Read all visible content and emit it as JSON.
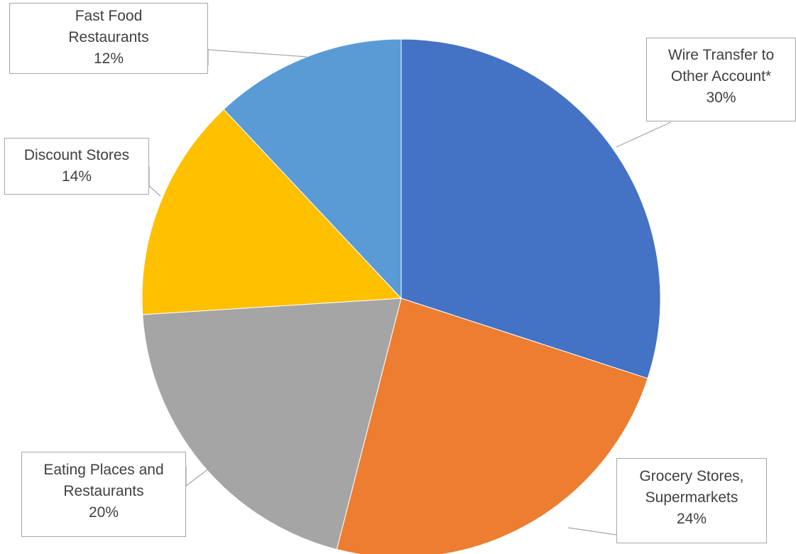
{
  "chart_data": {
    "type": "pie",
    "title": "",
    "start_angle_deg": 0,
    "direction": "clockwise",
    "legend": "none",
    "slices": [
      {
        "label_lines": [
          "Wire Transfer to",
          "Other Account*"
        ],
        "percent_label": "30%",
        "value": 30,
        "color": "#4472C4"
      },
      {
        "label_lines": [
          "Grocery Stores,",
          "Supermarkets"
        ],
        "percent_label": "24%",
        "value": 24,
        "color": "#ED7D31"
      },
      {
        "label_lines": [
          "Eating Places and",
          "Restaurants"
        ],
        "percent_label": "20%",
        "value": 20,
        "color": "#A5A5A5"
      },
      {
        "label_lines": [
          "Discount Stores"
        ],
        "percent_label": "14%",
        "value": 14,
        "color": "#FFC000"
      },
      {
        "label_lines": [
          "Fast Food",
          "Restaurants"
        ],
        "percent_label": "12%",
        "value": 12,
        "color": "#5B9BD5"
      }
    ]
  }
}
